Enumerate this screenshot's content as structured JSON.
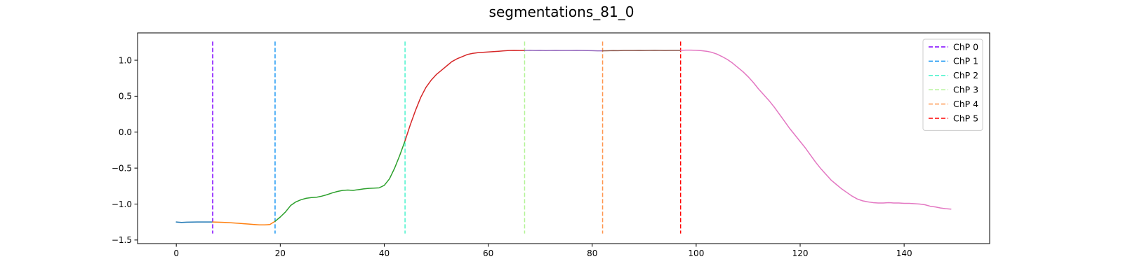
{
  "chart_data": {
    "type": "line",
    "title": "segmentations_81_0",
    "xlabel": "",
    "ylabel": "",
    "xlim": [
      -7.45,
      156.45
    ],
    "ylim": [
      -1.55,
      1.38
    ],
    "xticks": [
      0,
      20,
      40,
      60,
      80,
      100,
      120,
      140
    ],
    "yticks": [
      -1.5,
      -1.0,
      -0.5,
      0.0,
      0.5,
      1.0
    ],
    "ytick_labels": [
      "−1.5",
      "−1.0",
      "−0.5",
      "0.0",
      "0.5",
      "1.0"
    ],
    "grid": false,
    "legend_position": "top-right",
    "changepoint_ymin": -1.41,
    "changepoint_ymax": 1.26,
    "segments": [
      {
        "color": "#1f77b4",
        "points": [
          [
            0,
            -1.25
          ],
          [
            1,
            -1.255
          ],
          [
            2,
            -1.252
          ],
          [
            3,
            -1.251
          ],
          [
            4,
            -1.25
          ],
          [
            5,
            -1.249
          ],
          [
            6,
            -1.25
          ],
          [
            7,
            -1.25
          ]
        ]
      },
      {
        "color": "#ff7f0e",
        "points": [
          [
            7,
            -1.25
          ],
          [
            8,
            -1.252
          ],
          [
            9,
            -1.254
          ],
          [
            10,
            -1.258
          ],
          [
            11,
            -1.263
          ],
          [
            12,
            -1.268
          ],
          [
            13,
            -1.274
          ],
          [
            14,
            -1.279
          ],
          [
            15,
            -1.285
          ],
          [
            16,
            -1.29
          ],
          [
            17,
            -1.29
          ],
          [
            18,
            -1.285
          ],
          [
            19,
            -1.24
          ]
        ]
      },
      {
        "color": "#2ca02c",
        "points": [
          [
            19,
            -1.24
          ],
          [
            20,
            -1.18
          ],
          [
            21,
            -1.11
          ],
          [
            22,
            -1.02
          ],
          [
            23,
            -0.97
          ],
          [
            24,
            -0.94
          ],
          [
            25,
            -0.92
          ],
          [
            26,
            -0.91
          ],
          [
            27,
            -0.905
          ],
          [
            28,
            -0.89
          ],
          [
            29,
            -0.87
          ],
          [
            30,
            -0.845
          ],
          [
            31,
            -0.825
          ],
          [
            32,
            -0.81
          ],
          [
            33,
            -0.805
          ],
          [
            34,
            -0.81
          ],
          [
            35,
            -0.8
          ],
          [
            36,
            -0.79
          ],
          [
            37,
            -0.782
          ],
          [
            38,
            -0.778
          ],
          [
            39,
            -0.775
          ],
          [
            40,
            -0.74
          ],
          [
            41,
            -0.65
          ],
          [
            42,
            -0.5
          ],
          [
            43,
            -0.32
          ],
          [
            44,
            -0.12
          ]
        ]
      },
      {
        "color": "#d62728",
        "points": [
          [
            44,
            -0.12
          ],
          [
            45,
            0.1
          ],
          [
            46,
            0.3
          ],
          [
            47,
            0.48
          ],
          [
            48,
            0.62
          ],
          [
            49,
            0.72
          ],
          [
            50,
            0.8
          ],
          [
            51,
            0.86
          ],
          [
            52,
            0.92
          ],
          [
            53,
            0.98
          ],
          [
            54,
            1.02
          ],
          [
            55,
            1.05
          ],
          [
            56,
            1.08
          ],
          [
            57,
            1.095
          ],
          [
            58,
            1.105
          ],
          [
            59,
            1.11
          ],
          [
            60,
            1.115
          ],
          [
            61,
            1.12
          ],
          [
            62,
            1.125
          ],
          [
            63,
            1.13
          ],
          [
            64,
            1.135
          ],
          [
            65,
            1.137
          ],
          [
            66,
            1.135
          ],
          [
            67,
            1.135
          ]
        ]
      },
      {
        "color": "#9467bd",
        "points": [
          [
            67,
            1.135
          ],
          [
            68,
            1.138
          ],
          [
            69,
            1.135
          ],
          [
            70,
            1.137
          ],
          [
            71,
            1.134
          ],
          [
            72,
            1.136
          ],
          [
            73,
            1.137
          ],
          [
            74,
            1.136
          ],
          [
            75,
            1.135
          ],
          [
            76,
            1.136
          ],
          [
            77,
            1.137
          ],
          [
            78,
            1.135
          ],
          [
            79,
            1.134
          ],
          [
            80,
            1.133
          ],
          [
            81,
            1.131
          ],
          [
            82,
            1.13
          ]
        ]
      },
      {
        "color": "#8c564b",
        "points": [
          [
            82,
            1.13
          ],
          [
            83,
            1.132
          ],
          [
            84,
            1.134
          ],
          [
            85,
            1.133
          ],
          [
            86,
            1.135
          ],
          [
            87,
            1.136
          ],
          [
            88,
            1.135
          ],
          [
            89,
            1.137
          ],
          [
            90,
            1.136
          ],
          [
            91,
            1.137
          ],
          [
            92,
            1.138
          ],
          [
            93,
            1.137
          ],
          [
            94,
            1.136
          ],
          [
            95,
            1.137
          ],
          [
            96,
            1.137
          ],
          [
            97,
            1.137
          ]
        ]
      },
      {
        "color": "#e377c2",
        "points": [
          [
            97,
            1.137
          ],
          [
            98,
            1.14
          ],
          [
            99,
            1.14
          ],
          [
            100,
            1.138
          ],
          [
            101,
            1.133
          ],
          [
            102,
            1.125
          ],
          [
            103,
            1.11
          ],
          [
            104,
            1.085
          ],
          [
            105,
            1.05
          ],
          [
            106,
            1.01
          ],
          [
            107,
            0.96
          ],
          [
            108,
            0.9
          ],
          [
            109,
            0.84
          ],
          [
            110,
            0.77
          ],
          [
            111,
            0.69
          ],
          [
            112,
            0.6
          ],
          [
            113,
            0.52
          ],
          [
            114,
            0.44
          ],
          [
            115,
            0.35
          ],
          [
            116,
            0.25
          ],
          [
            117,
            0.15
          ],
          [
            118,
            0.05
          ],
          [
            119,
            -0.04
          ],
          [
            120,
            -0.13
          ],
          [
            121,
            -0.22
          ],
          [
            122,
            -0.32
          ],
          [
            123,
            -0.42
          ],
          [
            124,
            -0.51
          ],
          [
            125,
            -0.59
          ],
          [
            126,
            -0.67
          ],
          [
            127,
            -0.73
          ],
          [
            128,
            -0.79
          ],
          [
            129,
            -0.84
          ],
          [
            130,
            -0.89
          ],
          [
            131,
            -0.93
          ],
          [
            132,
            -0.955
          ],
          [
            133,
            -0.97
          ],
          [
            134,
            -0.98
          ],
          [
            135,
            -0.985
          ],
          [
            136,
            -0.985
          ],
          [
            137,
            -0.98
          ],
          [
            138,
            -0.985
          ],
          [
            139,
            -0.985
          ],
          [
            140,
            -0.99
          ],
          [
            141,
            -0.99
          ],
          [
            142,
            -0.995
          ],
          [
            143,
            -1.0
          ],
          [
            144,
            -1.01
          ],
          [
            145,
            -1.03
          ],
          [
            146,
            -1.04
          ],
          [
            147,
            -1.055
          ],
          [
            148,
            -1.065
          ],
          [
            149,
            -1.07
          ]
        ]
      }
    ],
    "changepoints": [
      {
        "name": "ChP 0",
        "x": 7,
        "color": "#7f00ff"
      },
      {
        "name": "ChP 1",
        "x": 19,
        "color": "#1996f3"
      },
      {
        "name": "ChP 2",
        "x": 44,
        "color": "#4df3ce"
      },
      {
        "name": "ChP 3",
        "x": 67,
        "color": "#b2f396"
      },
      {
        "name": "ChP 4",
        "x": 82,
        "color": "#ff964f"
      },
      {
        "name": "ChP 5",
        "x": 97,
        "color": "#ff0000"
      }
    ]
  }
}
